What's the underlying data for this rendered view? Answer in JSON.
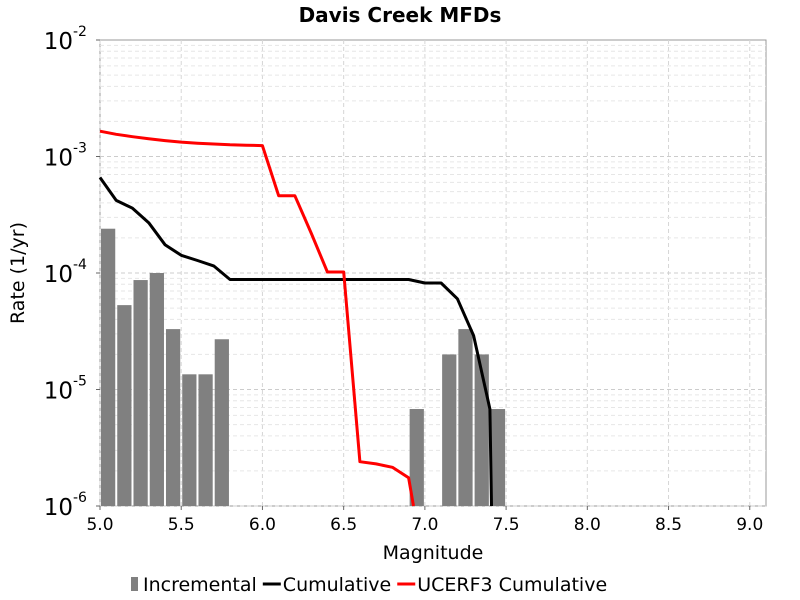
{
  "chart_data": {
    "type": "line",
    "title": "Davis Creek MFDs",
    "xlabel": "Magnitude",
    "ylabel": "Rate (1/yr)",
    "xlim": [
      5.0,
      9.1
    ],
    "ylim": [
      1e-06,
      0.01
    ],
    "y_scale": "log",
    "grid": true,
    "legend_position": "bottom",
    "x_ticks": [
      "5.0",
      "5.5",
      "6.0",
      "6.5",
      "7.0",
      "7.5",
      "8.0",
      "8.5",
      "9.0"
    ],
    "y_ticks": [
      {
        "base": "10",
        "exp": "-6"
      },
      {
        "base": "10",
        "exp": "-5"
      },
      {
        "base": "10",
        "exp": "-4"
      },
      {
        "base": "10",
        "exp": "-3"
      },
      {
        "base": "10",
        "exp": "-2"
      }
    ],
    "series": [
      {
        "name": "Incremental",
        "type": "bar",
        "color": "#808080",
        "bar_width": 0.1,
        "x": [
          5.05,
          5.15,
          5.25,
          5.35,
          5.45,
          5.55,
          5.65,
          5.75,
          6.95,
          7.15,
          7.25,
          7.35,
          7.45
        ],
        "values": [
          0.00024,
          5.3e-05,
          8.7e-05,
          0.0001,
          3.3e-05,
          1.35e-05,
          1.35e-05,
          2.7e-05,
          6.8e-06,
          2e-05,
          3.3e-05,
          2e-05,
          6.8e-06
        ]
      },
      {
        "name": "Cumulative",
        "type": "line",
        "color": "#000000",
        "x": [
          5.0,
          5.1,
          5.2,
          5.3,
          5.4,
          5.5,
          5.6,
          5.7,
          5.8,
          5.9,
          6.9,
          7.0,
          7.1,
          7.2,
          7.3,
          7.4,
          7.41
        ],
        "values": [
          0.00066,
          0.00042,
          0.00036,
          0.00027,
          0.000175,
          0.000142,
          0.000128,
          0.000115,
          8.8e-05,
          8.8e-05,
          8.8e-05,
          8.2e-05,
          8.2e-05,
          6e-05,
          2.9e-05,
          6.8e-06,
          1e-06
        ]
      },
      {
        "name": "UCERF3 Cumulative",
        "type": "line",
        "color": "#ff0000",
        "x": [
          5.0,
          5.1,
          5.2,
          5.3,
          5.4,
          5.5,
          5.6,
          5.7,
          5.8,
          5.9,
          6.0,
          6.1,
          6.2,
          6.3,
          6.4,
          6.5,
          6.6,
          6.7,
          6.8,
          6.9,
          6.93
        ],
        "values": [
          0.00165,
          0.00155,
          0.00148,
          0.00142,
          0.00137,
          0.00133,
          0.0013,
          0.00128,
          0.00126,
          0.00125,
          0.00124,
          0.00046,
          0.00046,
          0.00022,
          0.000102,
          0.000102,
          2.4e-06,
          2.3e-06,
          2.15e-06,
          1.75e-06,
          1e-06
        ]
      }
    ]
  }
}
